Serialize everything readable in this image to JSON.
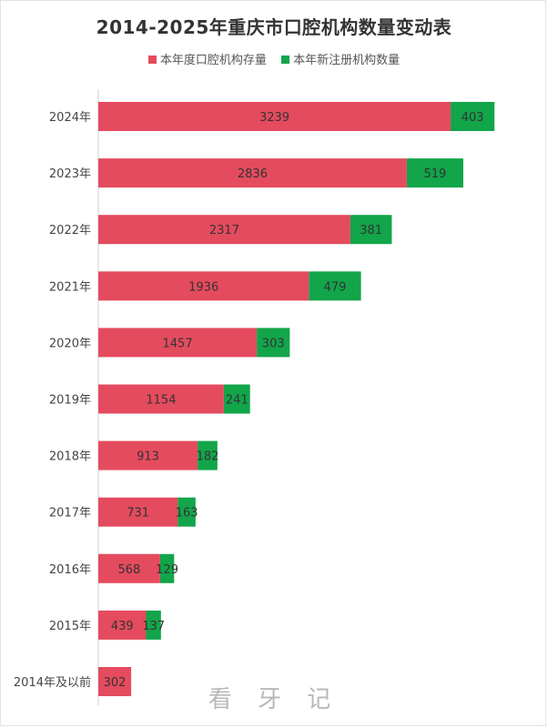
{
  "chart_data": {
    "type": "bar",
    "orientation": "horizontal",
    "stacked": true,
    "title": "2014-2025年重庆市口腔机构数量变动表",
    "categories": [
      "2024年",
      "2023年",
      "2022年",
      "2021年",
      "2020年",
      "2019年",
      "2018年",
      "2017年",
      "2016年",
      "2015年",
      "2014年及以前"
    ],
    "series": [
      {
        "name": "本年度口腔机构存量",
        "color": "#e54b5e",
        "values": [
          3239,
          2836,
          2317,
          1936,
          1457,
          1154,
          913,
          731,
          568,
          439,
          302
        ]
      },
      {
        "name": "本年新注册机构数量",
        "color": "#12a54a",
        "values": [
          403,
          519,
          381,
          479,
          303,
          241,
          182,
          163,
          129,
          137,
          null
        ]
      }
    ],
    "legend_position": "top",
    "grid": false
  },
  "watermark": "看 牙 记"
}
